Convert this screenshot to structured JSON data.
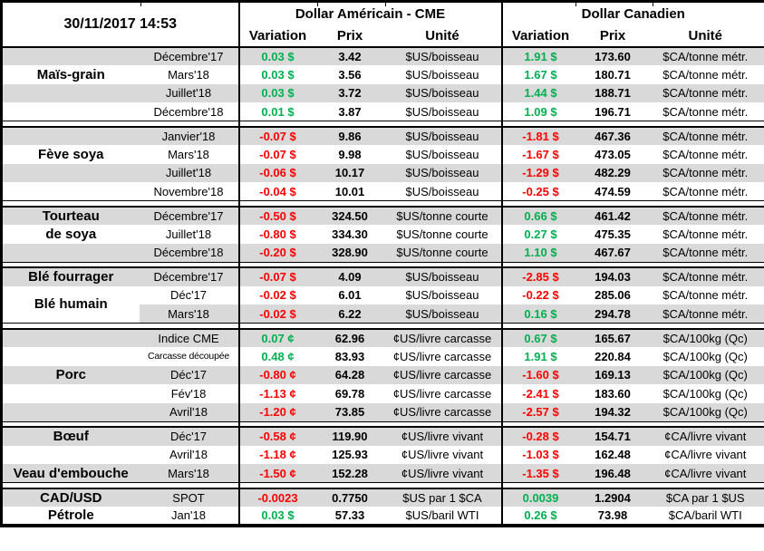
{
  "header": {
    "timestamp": "30/11/2017 14:53",
    "us_label": "Dollar Américain - CME",
    "ca_label": "Dollar Canadien",
    "columns": [
      "Variation",
      "Prix",
      "Unité"
    ]
  },
  "colors": {
    "positive": "#00B050",
    "negative": "#FF0000",
    "stripe": "#D9D9D9",
    "border": "#000000"
  },
  "sections": [
    {
      "name": "mais-grain",
      "labels": [
        {
          "row": 1,
          "text": "Maïs-grain"
        }
      ],
      "rows": [
        {
          "month": "Décembre'17",
          "us_variation": "0.03 $",
          "us_prix": "3.42",
          "us_unite": "$US/boisseau",
          "ca_variation": "1.91 $",
          "ca_prix": "173.60",
          "ca_unite": "$CA/tonne métr."
        },
        {
          "month": "Mars'18",
          "us_variation": "0.03 $",
          "us_prix": "3.56",
          "us_unite": "$US/boisseau",
          "ca_variation": "1.67 $",
          "ca_prix": "180.71",
          "ca_unite": "$CA/tonne métr."
        },
        {
          "month": "Juillet'18",
          "us_variation": "0.03 $",
          "us_prix": "3.72",
          "us_unite": "$US/boisseau",
          "ca_variation": "1.44 $",
          "ca_prix": "188.71",
          "ca_unite": "$CA/tonne métr."
        },
        {
          "month": "Décembre'18",
          "us_variation": "0.01 $",
          "us_prix": "3.87",
          "us_unite": "$US/boisseau",
          "ca_variation": "1.09 $",
          "ca_prix": "196.71",
          "ca_unite": "$CA/tonne métr."
        }
      ]
    },
    {
      "name": "feve-soya",
      "labels": [
        {
          "row": 1,
          "text": "Fève soya"
        }
      ],
      "rows": [
        {
          "month": "Janvier'18",
          "us_variation": "-0.07 $",
          "us_prix": "9.86",
          "us_unite": "$US/boisseau",
          "ca_variation": "-1.81 $",
          "ca_prix": "467.36",
          "ca_unite": "$CA/tonne métr."
        },
        {
          "month": "Mars'18",
          "us_variation": "-0.07 $",
          "us_prix": "9.98",
          "us_unite": "$US/boisseau",
          "ca_variation": "-1.67 $",
          "ca_prix": "473.05",
          "ca_unite": "$CA/tonne métr."
        },
        {
          "month": "Juillet'18",
          "us_variation": "-0.06 $",
          "us_prix": "10.17",
          "us_unite": "$US/boisseau",
          "ca_variation": "-1.29 $",
          "ca_prix": "482.29",
          "ca_unite": "$CA/tonne métr."
        },
        {
          "month": "Novembre'18",
          "us_variation": "-0.04 $",
          "us_prix": "10.01",
          "us_unite": "$US/boisseau",
          "ca_variation": "-0.25 $",
          "ca_prix": "474.59",
          "ca_unite": "$CA/tonne métr."
        }
      ]
    },
    {
      "name": "tourteau-de-soya",
      "labels": [
        {
          "row": 0,
          "text": "Tourteau"
        },
        {
          "row": 1,
          "text": "de soya"
        }
      ],
      "rows": [
        {
          "month": "Décembre'17",
          "us_variation": "-0.50 $",
          "us_prix": "324.50",
          "us_unite": "$US/tonne courte",
          "ca_variation": "0.66 $",
          "ca_prix": "461.42",
          "ca_unite": "$CA/tonne métr."
        },
        {
          "month": "Juillet'18",
          "us_variation": "-0.80 $",
          "us_prix": "334.30",
          "us_unite": "$US/tonne courte",
          "ca_variation": "0.27 $",
          "ca_prix": "475.35",
          "ca_unite": "$CA/tonne métr."
        },
        {
          "month": "Décembre'18",
          "us_variation": "-0.20 $",
          "us_prix": "328.90",
          "us_unite": "$US/tonne courte",
          "ca_variation": "1.10 $",
          "ca_prix": "467.67",
          "ca_unite": "$CA/tonne métr."
        }
      ]
    },
    {
      "name": "ble",
      "labels": [
        {
          "row": 0,
          "text": "Blé fourrager"
        }
      ],
      "merged_label": {
        "text": "Blé humain",
        "start_row": 1,
        "span": 2
      },
      "rows": [
        {
          "month": "Décembre'17",
          "us_variation": "-0.07 $",
          "us_prix": "4.09",
          "us_unite": "$US/boisseau",
          "ca_variation": "-2.85 $",
          "ca_prix": "194.03",
          "ca_unite": "$CA/tonne métr."
        },
        {
          "month": "Déc'17",
          "us_variation": "-0.02 $",
          "us_prix": "6.01",
          "us_unite": "$US/boisseau",
          "ca_variation": "-0.22 $",
          "ca_prix": "285.06",
          "ca_unite": "$CA/tonne métr."
        },
        {
          "month": "Mars'18",
          "us_variation": "-0.02 $",
          "us_prix": "6.22",
          "us_unite": "$US/boisseau",
          "ca_variation": "0.16 $",
          "ca_prix": "294.78",
          "ca_unite": "$CA/tonne métr."
        }
      ]
    },
    {
      "name": "porc",
      "labels": [
        {
          "row": 2,
          "text": "Porc"
        }
      ],
      "rows": [
        {
          "month": "Indice CME",
          "us_variation": "0.07 ¢",
          "us_prix": "62.96",
          "us_unite": "¢US/livre carcasse",
          "ca_variation": "0.67 $",
          "ca_prix": "165.67",
          "ca_unite": "$CA/100kg (Qc)"
        },
        {
          "month": "Carcasse découpée",
          "small": true,
          "us_variation": "0.48 ¢",
          "us_prix": "83.93",
          "us_unite": "¢US/livre carcasse",
          "ca_variation": "1.91 $",
          "ca_prix": "220.84",
          "ca_unite": "$CA/100kg (Qc)"
        },
        {
          "month": "Déc'17",
          "us_variation": "-0.80 ¢",
          "us_prix": "64.28",
          "us_unite": "¢US/livre carcasse",
          "ca_variation": "-1.60 $",
          "ca_prix": "169.13",
          "ca_unite": "$CA/100kg (Qc)"
        },
        {
          "month": "Fév'18",
          "us_variation": "-1.13 ¢",
          "us_prix": "69.78",
          "us_unite": "¢US/livre carcasse",
          "ca_variation": "-2.41 $",
          "ca_prix": "183.60",
          "ca_unite": "$CA/100kg (Qc)"
        },
        {
          "month": "Avril'18",
          "us_variation": "-1.20 ¢",
          "us_prix": "73.85",
          "us_unite": "¢US/livre carcasse",
          "ca_variation": "-2.57 $",
          "ca_prix": "194.32",
          "ca_unite": "$CA/100kg (Qc)"
        }
      ]
    },
    {
      "name": "boeuf-veau",
      "labels": [
        {
          "row": 0,
          "text": "Bœuf"
        },
        {
          "row": 2,
          "text": "Veau d'embouche"
        }
      ],
      "rows": [
        {
          "month": "Déc'17",
          "us_variation": "-0.58 ¢",
          "us_prix": "119.90",
          "us_unite": "¢US/livre vivant",
          "ca_variation": "-0.28 $",
          "ca_prix": "154.71",
          "ca_unite": "¢CA/livre vivant"
        },
        {
          "month": "Avril'18",
          "us_variation": "-1.18 ¢",
          "us_prix": "125.93",
          "us_unite": "¢US/livre vivant",
          "ca_variation": "-1.03 $",
          "ca_prix": "162.48",
          "ca_unite": "¢CA/livre vivant"
        },
        {
          "month": "Mars'18",
          "us_variation": "-1.50 ¢",
          "us_prix": "152.28",
          "us_unite": "¢US/livre vivant",
          "ca_variation": "-1.35 $",
          "ca_prix": "196.48",
          "ca_unite": "¢CA/livre vivant"
        }
      ]
    },
    {
      "name": "cad-usd-petrole",
      "labels": [
        {
          "row": 0,
          "text": "CAD/USD"
        },
        {
          "row": 1,
          "text": "Pétrole"
        }
      ],
      "rows": [
        {
          "month": "SPOT",
          "us_variation": "-0.0023",
          "us_prix": "0.7750",
          "us_unite": "$US par 1 $CA",
          "ca_variation": "0.0039",
          "ca_prix": "1.2904",
          "ca_unite": "$CA par 1 $US"
        },
        {
          "month": "Jan'18",
          "us_variation": "0.03 $",
          "us_prix": "57.33",
          "us_unite": "$US/baril WTI",
          "ca_variation": "0.26 $",
          "ca_prix": "73.98",
          "ca_unite": "$CA/baril WTI"
        }
      ]
    }
  ]
}
